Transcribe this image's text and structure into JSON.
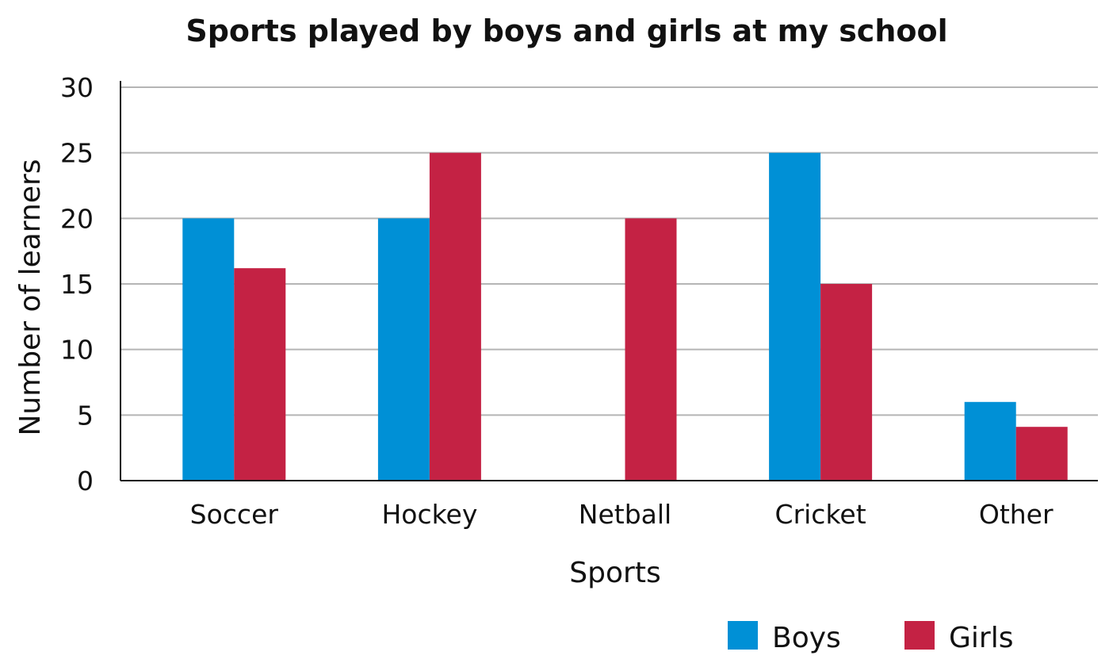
{
  "chart_data": {
    "type": "bar",
    "title": "Sports played by boys and girls at my school",
    "xlabel": "Sports",
    "ylabel": "Number of learners",
    "categories": [
      "Soccer",
      "Hockey",
      "Netball",
      "Cricket",
      "Other"
    ],
    "series": [
      {
        "name": "Boys",
        "color": "#0090d6",
        "values": [
          20,
          20,
          0,
          25,
          6
        ]
      },
      {
        "name": "Girls",
        "color": "#c42244",
        "values": [
          16.2,
          25,
          20,
          15,
          4.1
        ]
      }
    ],
    "ylim": [
      0,
      30
    ],
    "yticks": [
      "0",
      "5",
      "10",
      "15",
      "20",
      "25",
      "30"
    ],
    "grid": true,
    "legend_position": "bottom-right"
  }
}
